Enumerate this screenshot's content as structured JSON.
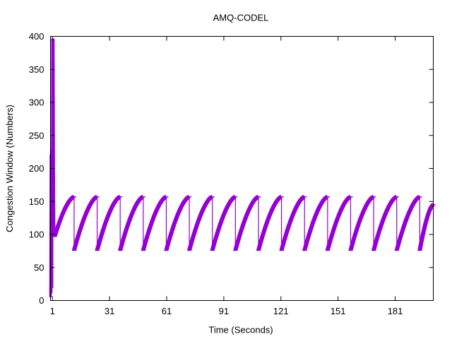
{
  "chart_data": {
    "type": "line",
    "title": "AMQ-CODEL",
    "xlabel": "Time (Seconds)",
    "ylabel": "Congestion Window (Numbers)",
    "xlim": [
      0,
      201
    ],
    "ylim": [
      0,
      400
    ],
    "x_ticks": [
      1,
      31,
      61,
      91,
      121,
      151,
      181
    ],
    "y_ticks": [
      0,
      50,
      100,
      150,
      200,
      250,
      300,
      350,
      400
    ],
    "grid": false,
    "legend": "none",
    "series": [
      {
        "color": "#9400d3",
        "initial_points": [
          [
            0.0,
            5
          ],
          [
            0.2,
            220
          ],
          [
            0.4,
            12
          ],
          [
            0.6,
            228
          ],
          [
            0.8,
            20
          ],
          [
            1.0,
            395
          ],
          [
            1.3,
            230
          ],
          [
            1.5,
            395
          ],
          [
            1.7,
            225
          ],
          [
            1.9,
            100
          ],
          [
            2.2,
            97
          ]
        ],
        "sawtooth": [
          {
            "start": 2.2,
            "end": 12.4,
            "from": 97,
            "to": 157
          },
          {
            "start": 12.4,
            "end": 24.5,
            "from": 76,
            "to": 157
          },
          {
            "start": 24.5,
            "end": 36.6,
            "from": 76,
            "to": 157
          },
          {
            "start": 36.6,
            "end": 48.7,
            "from": 76,
            "to": 157
          },
          {
            "start": 48.7,
            "end": 60.8,
            "from": 76,
            "to": 157
          },
          {
            "start": 60.8,
            "end": 72.9,
            "from": 76,
            "to": 157
          },
          {
            "start": 72.9,
            "end": 85.0,
            "from": 76,
            "to": 157
          },
          {
            "start": 85.0,
            "end": 97.1,
            "from": 76,
            "to": 157
          },
          {
            "start": 97.1,
            "end": 109.2,
            "from": 76,
            "to": 157
          },
          {
            "start": 109.2,
            "end": 121.3,
            "from": 76,
            "to": 157
          },
          {
            "start": 121.3,
            "end": 133.4,
            "from": 76,
            "to": 157
          },
          {
            "start": 133.4,
            "end": 145.5,
            "from": 76,
            "to": 157
          },
          {
            "start": 145.5,
            "end": 157.6,
            "from": 76,
            "to": 157
          },
          {
            "start": 157.6,
            "end": 169.7,
            "from": 76,
            "to": 157
          },
          {
            "start": 169.7,
            "end": 181.8,
            "from": 76,
            "to": 157
          },
          {
            "start": 181.8,
            "end": 193.9,
            "from": 76,
            "to": 157
          },
          {
            "start": 193.9,
            "end": 201.0,
            "from": 76,
            "to": 145
          }
        ]
      }
    ]
  }
}
